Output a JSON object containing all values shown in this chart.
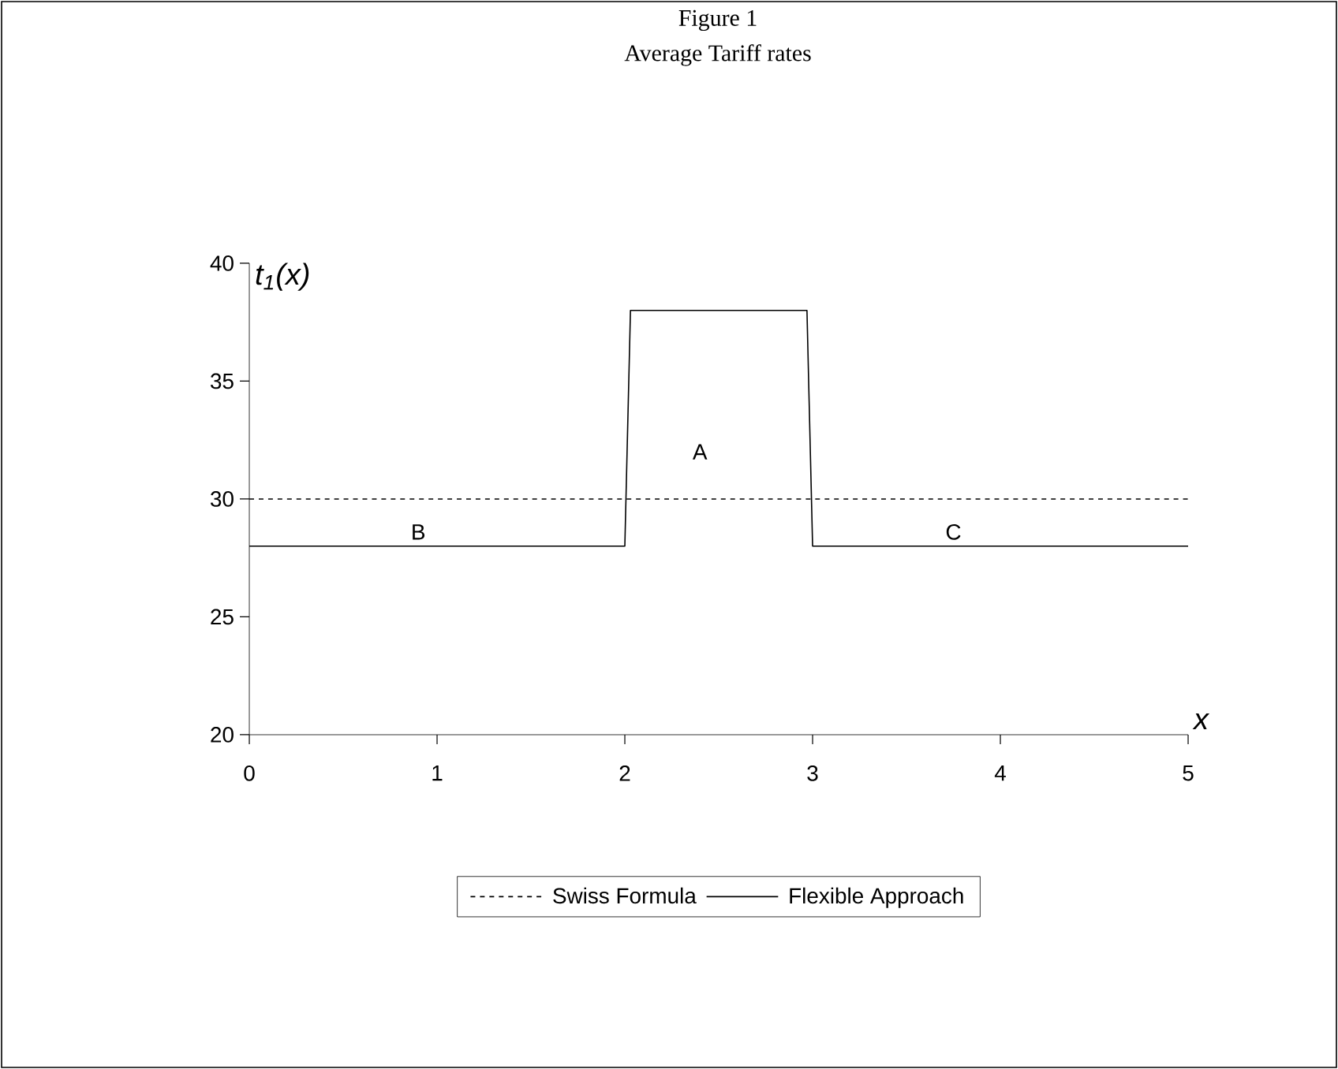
{
  "chart_data": {
    "type": "line",
    "title": "Figure 1",
    "subtitle": "Average Tariff rates",
    "xlabel": "x",
    "ylabel": "t$_{1}$(x)",
    "xlim": [
      0,
      5
    ],
    "xticks": [
      0,
      1,
      2,
      3,
      4,
      5
    ],
    "ylim": [
      20,
      40
    ],
    "yticks": [
      20,
      25,
      30,
      35,
      40
    ],
    "series": [
      {
        "name": "Swiss Formula",
        "color": "#000000",
        "line_style": "dashed",
        "x": [
          0,
          5
        ],
        "values": [
          30,
          30
        ]
      },
      {
        "name": "Flexible Approach",
        "color": "#000000",
        "line_style": "solid",
        "x": [
          0,
          2,
          2.03,
          2.97,
          3,
          5
        ],
        "values": [
          28,
          28,
          38,
          38,
          28,
          28
        ]
      }
    ],
    "annotations": [
      "A",
      "B",
      "C"
    ],
    "legend": "bottom",
    "grid": false,
    "marker": "none"
  }
}
